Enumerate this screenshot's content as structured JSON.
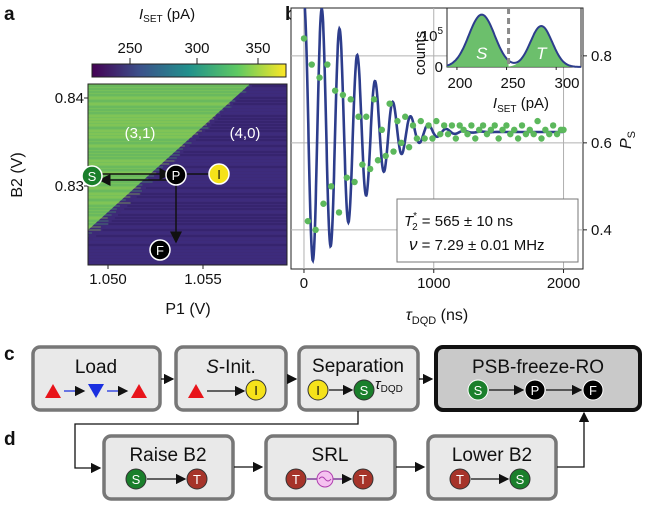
{
  "panels": {
    "a": {
      "label": "a",
      "colorbar": {
        "title_main": "I",
        "title_sub": "SET",
        "title_unit": " (pA)",
        "ticks": [
          "250",
          "300",
          "350"
        ],
        "colors": [
          "#440154",
          "#3b528b",
          "#21918c",
          "#5ec962",
          "#fde725"
        ]
      },
      "xlabel": "P1 (V)",
      "ylabel": "B2 (V)",
      "xticks": [
        "1.050",
        "1.055"
      ],
      "yticks": [
        "0.84",
        "0.83"
      ],
      "regions": [
        "(3,1)",
        "(4,0)"
      ],
      "markers": [
        {
          "text": "S",
          "color": "#1a7f2b"
        },
        {
          "text": "P",
          "color": "#000000"
        },
        {
          "text": "I",
          "color": "#f5e21a"
        },
        {
          "text": "F",
          "color": "#000000"
        }
      ]
    },
    "b": {
      "label": "b",
      "xlabel_main": "τ",
      "xlabel_sub": "DQD",
      "xlabel_unit": " (ns)",
      "ylabel_main": "P",
      "ylabel_sub": "S",
      "annotation": {
        "t2_main": "T",
        "t2_sub": "2",
        "t2_sup": "*",
        "t2_value": " = 565 ± 10 ns",
        "nu_label": "ν",
        "nu_value": " = 7.29 ± 0.01 MHz"
      },
      "inset": {
        "ylabel": "counts",
        "ytick_top": "10",
        "ytick_top_exp": "5",
        "ytick_bottom": "0",
        "xticks": [
          "200",
          "250",
          "300"
        ],
        "xlabel_main": "I",
        "xlabel_sub": "SET",
        "xlabel_unit": " (pA)",
        "peaks": [
          "S",
          "T"
        ],
        "fill_color": "#5cb85c",
        "line_color": "#2d3d8c"
      }
    },
    "c": {
      "label": "c",
      "steps": [
        {
          "title": "Load"
        },
        {
          "title_italic": "S",
          "title_rest": "-Init."
        },
        {
          "title": "Separation",
          "extra_main": "τ",
          "extra_sub": "DQD"
        },
        {
          "title": "PSB-freeze-RO"
        }
      ]
    },
    "d": {
      "label": "d",
      "steps": [
        {
          "title": "Raise B2"
        },
        {
          "title": "SRL"
        },
        {
          "title": "Lower B2"
        }
      ]
    }
  },
  "chart_data": [
    {
      "type": "scatter",
      "panel": "b",
      "title": "",
      "xlabel": "τDQD (ns)",
      "ylabel": "PS",
      "xlim": [
        -100,
        2150
      ],
      "ylim": [
        0.31,
        0.91
      ],
      "xticks": [
        0,
        1000,
        2000
      ],
      "yticks": [
        0.4,
        0.6,
        0.8
      ],
      "grid": true,
      "fit": {
        "model": "damped_cosine",
        "offset": 0.625,
        "amplitude": 0.3,
        "T2star_ns": 565,
        "frequency_MHz": 7.29,
        "color": "#2d3d8c"
      },
      "points_color": "#5cb85c",
      "points_x": [
        0,
        30,
        60,
        90,
        120,
        150,
        180,
        210,
        240,
        270,
        300,
        330,
        360,
        390,
        420,
        450,
        480,
        510,
        540,
        570,
        600,
        630,
        660,
        690,
        720,
        750,
        780,
        810,
        840,
        870,
        900,
        930,
        960,
        990,
        1020,
        1050,
        1080,
        1110,
        1140,
        1170,
        1200,
        1230,
        1260,
        1290,
        1320,
        1350,
        1380,
        1410,
        1440,
        1470,
        1500,
        1530,
        1560,
        1590,
        1620,
        1650,
        1680,
        1710,
        1740,
        1770,
        1800,
        1830,
        1860,
        1890,
        1920,
        1950,
        1980,
        2000
      ],
      "points_y": [
        0.84,
        0.42,
        0.78,
        0.4,
        0.75,
        0.46,
        0.78,
        0.5,
        0.72,
        0.44,
        0.71,
        0.52,
        0.7,
        0.51,
        0.66,
        0.55,
        0.66,
        0.54,
        0.7,
        0.56,
        0.63,
        0.57,
        0.69,
        0.58,
        0.65,
        0.6,
        0.66,
        0.59,
        0.64,
        0.61,
        0.65,
        0.61,
        0.64,
        0.61,
        0.65,
        0.62,
        0.64,
        0.62,
        0.64,
        0.61,
        0.64,
        0.63,
        0.62,
        0.64,
        0.61,
        0.63,
        0.64,
        0.62,
        0.63,
        0.64,
        0.61,
        0.63,
        0.64,
        0.62,
        0.63,
        0.61,
        0.64,
        0.62,
        0.63,
        0.62,
        0.65,
        0.61,
        0.63,
        0.62,
        0.64,
        0.62,
        0.63,
        0.63
      ]
    },
    {
      "type": "area",
      "panel": "b-inset",
      "title": "",
      "xlabel": "ISET (pA)",
      "ylabel": "counts",
      "xlim": [
        190,
        325
      ],
      "xticks": [
        200,
        250,
        300
      ],
      "threshold_x": 252,
      "series": [
        {
          "name": "S",
          "peak_x": 225,
          "peak_counts": 1.6,
          "sigma": 13
        },
        {
          "name": "T",
          "peak_x": 285,
          "peak_counts": 1.25,
          "sigma": 11
        }
      ]
    }
  ]
}
